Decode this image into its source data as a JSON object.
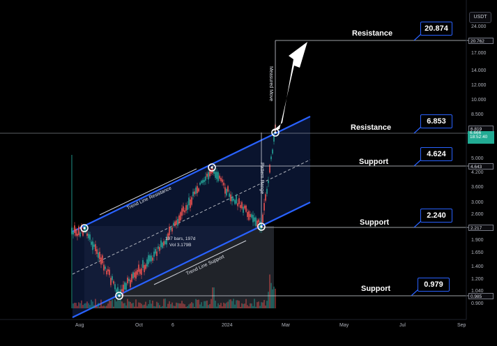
{
  "currency": "USDT",
  "price_axis": {
    "ticks": [
      "24.000",
      "20.000",
      "17.000",
      "14.000",
      "12.000",
      "10.000",
      "8.500",
      "7.000",
      "6.000",
      "5.000",
      "4.200",
      "3.600",
      "3.000",
      "2.600",
      "2.200",
      "1.900",
      "1.650",
      "1.400",
      "1.200",
      "1.040",
      "0.900"
    ],
    "tags": [
      "20.762",
      "6.819",
      "4.643",
      "2.217",
      "0.985"
    ],
    "last_price": [
      "6.666",
      "18:52:40"
    ]
  },
  "time_axis": [
    "Aug",
    "Oct",
    "6",
    "2024",
    "Mar",
    "May",
    "Jul",
    "Sep"
  ],
  "levels": [
    {
      "label": "Resistance",
      "value": "20.874"
    },
    {
      "label": "Resistance",
      "value": "6.853"
    },
    {
      "label": "Support",
      "value": "4.624"
    },
    {
      "label": "Support",
      "value": "2.240"
    },
    {
      "label": "Support",
      "value": "0.979"
    }
  ],
  "annotations": {
    "trend_resistance": "Trend Line Resistance",
    "trend_support": "Trend Line Support",
    "measured_move": "Measured Move",
    "pattern_range": "Pattern Range",
    "range_bars": "197 bars, 197d",
    "range_vol": "Vol 3.179B"
  },
  "colors": {
    "background": "#000000",
    "channel_line": "#2962ff",
    "channel_fill": "#0d1b3d",
    "up_candle": "#26a69a",
    "down_candle": "#ef5350",
    "range_fill": "#3a3f4b"
  }
}
